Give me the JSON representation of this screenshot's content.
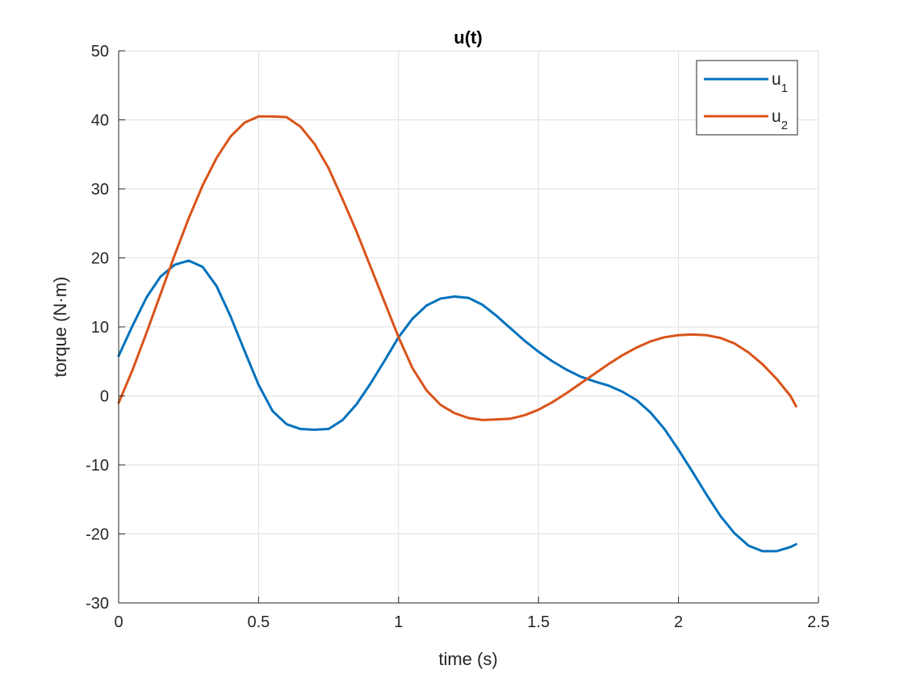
{
  "chart_data": {
    "type": "line",
    "title": "u(t)",
    "xlabel": "time (s)",
    "ylabel": "torque (N·m)",
    "xlim": [
      0,
      2.5
    ],
    "ylim": [
      -30,
      50
    ],
    "xticks": [
      0,
      0.5,
      1,
      1.5,
      2,
      2.5
    ],
    "xtick_labels": [
      "0",
      "0.5",
      "1",
      "1.5",
      "2",
      "2.5"
    ],
    "yticks": [
      -30,
      -20,
      -10,
      0,
      10,
      20,
      30,
      40,
      50
    ],
    "ytick_labels": [
      "-30",
      "-20",
      "-10",
      "0",
      "10",
      "20",
      "30",
      "40",
      "50"
    ],
    "grid": true,
    "legend_position": "top-right",
    "series": [
      {
        "name": "u1",
        "legend_base": "u",
        "legend_sub": "1",
        "color": "#0072BD",
        "x": [
          0,
          0.05,
          0.1,
          0.15,
          0.2,
          0.25,
          0.3,
          0.35,
          0.4,
          0.45,
          0.5,
          0.55,
          0.6,
          0.65,
          0.7,
          0.75,
          0.8,
          0.85,
          0.9,
          0.95,
          1.0,
          1.05,
          1.1,
          1.15,
          1.2,
          1.25,
          1.3,
          1.35,
          1.4,
          1.45,
          1.5,
          1.55,
          1.6,
          1.65,
          1.7,
          1.75,
          1.8,
          1.85,
          1.9,
          1.95,
          2.0,
          2.05,
          2.1,
          2.15,
          2.2,
          2.25,
          2.3,
          2.35,
          2.4,
          2.42
        ],
        "y": [
          5.8,
          10.2,
          14.3,
          17.3,
          19.0,
          19.6,
          18.7,
          15.9,
          11.5,
          6.5,
          1.6,
          -2.2,
          -4.1,
          -4.8,
          -4.9,
          -4.8,
          -3.5,
          -1.2,
          1.8,
          5.1,
          8.5,
          11.2,
          13.1,
          14.1,
          14.4,
          14.2,
          13.2,
          11.6,
          9.8,
          8.0,
          6.4,
          5.0,
          3.8,
          2.8,
          2.1,
          1.5,
          0.6,
          -0.6,
          -2.4,
          -4.8,
          -7.8,
          -11.0,
          -14.3,
          -17.4,
          -19.9,
          -21.7,
          -22.5,
          -22.5,
          -21.9,
          -21.5
        ]
      },
      {
        "name": "u2",
        "legend_base": "u",
        "legend_sub": "2",
        "color": "#D95319",
        "x": [
          0,
          0.05,
          0.1,
          0.15,
          0.2,
          0.25,
          0.3,
          0.35,
          0.4,
          0.45,
          0.5,
          0.55,
          0.6,
          0.65,
          0.7,
          0.75,
          0.8,
          0.85,
          0.9,
          0.95,
          1.0,
          1.05,
          1.1,
          1.15,
          1.2,
          1.25,
          1.3,
          1.35,
          1.4,
          1.45,
          1.5,
          1.55,
          1.6,
          1.65,
          1.7,
          1.75,
          1.8,
          1.85,
          1.9,
          1.95,
          2.0,
          2.05,
          2.1,
          2.15,
          2.2,
          2.25,
          2.3,
          2.35,
          2.4,
          2.42
        ],
        "y": [
          -1.0,
          3.8,
          9.2,
          14.8,
          20.4,
          25.7,
          30.5,
          34.5,
          37.6,
          39.6,
          40.5,
          40.5,
          40.4,
          39.0,
          36.5,
          33.0,
          28.5,
          23.8,
          18.7,
          13.6,
          8.5,
          4.0,
          0.8,
          -1.3,
          -2.5,
          -3.2,
          -3.5,
          -3.4,
          -3.3,
          -2.8,
          -2.0,
          -0.9,
          0.4,
          1.8,
          3.2,
          4.6,
          5.9,
          7.0,
          7.9,
          8.5,
          8.8,
          8.9,
          8.8,
          8.4,
          7.6,
          6.3,
          4.6,
          2.5,
          0.0,
          -1.5
        ]
      }
    ]
  }
}
